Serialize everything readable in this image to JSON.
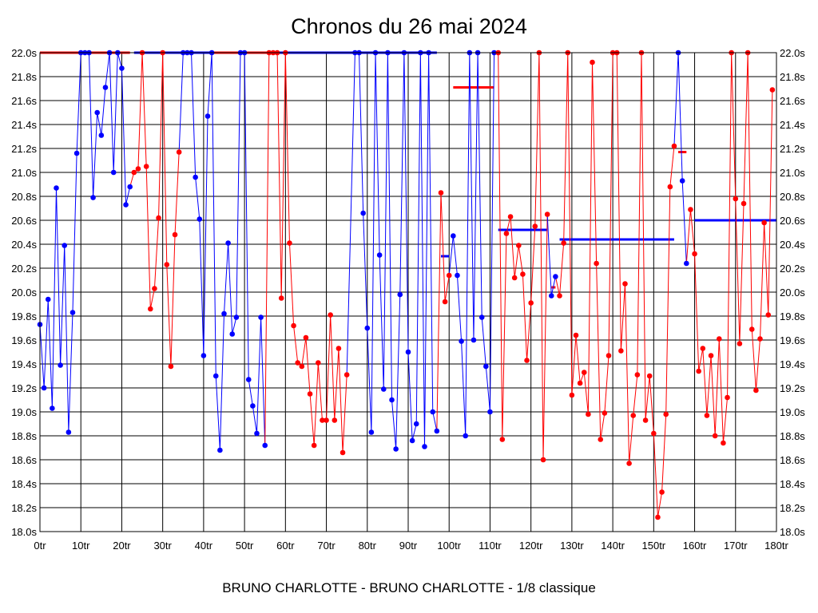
{
  "chart_data": {
    "type": "line",
    "title": "Chronos du 26 mai 2024",
    "footer": "BRUNO CHARLOTTE - BRUNO CHARLOTTE - 1/8 classique",
    "xlabel": "tr",
    "ylabel": "s",
    "xlim": [
      0,
      180
    ],
    "ylim": [
      18.0,
      22.0
    ],
    "x_ticks": [
      "0tr",
      "10tr",
      "20tr",
      "30tr",
      "40tr",
      "50tr",
      "60tr",
      "70tr",
      "80tr",
      "90tr",
      "100tr",
      "110tr",
      "120tr",
      "130tr",
      "140tr",
      "150tr",
      "160tr",
      "170tr",
      "180tr"
    ],
    "y_ticks": [
      "18.0s",
      "18.2s",
      "18.4s",
      "18.6s",
      "18.8s",
      "19.0s",
      "19.2s",
      "19.4s",
      "19.6s",
      "19.8s",
      "20.0s",
      "20.2s",
      "20.4s",
      "20.6s",
      "20.8s",
      "21.0s",
      "21.2s",
      "21.4s",
      "21.6s",
      "21.8s",
      "22.0s"
    ],
    "grid": true,
    "colors": {
      "blue": "#0000ff",
      "red": "#ff0000"
    },
    "segments": [
      {
        "color": "blue",
        "points": [
          [
            0,
            19.73
          ],
          [
            1,
            19.2
          ],
          [
            2,
            19.94
          ],
          [
            3,
            19.03
          ],
          [
            4,
            20.87
          ],
          [
            5,
            19.39
          ],
          [
            6,
            20.39
          ],
          [
            7,
            18.83
          ],
          [
            8,
            19.83
          ],
          [
            9,
            21.16
          ],
          [
            10,
            22
          ],
          [
            11,
            22
          ],
          [
            12,
            22
          ],
          [
            13,
            20.79
          ],
          [
            14,
            21.5
          ],
          [
            15,
            21.31
          ],
          [
            16,
            21.71
          ],
          [
            17,
            22
          ],
          [
            18,
            21.0
          ],
          [
            19,
            22
          ],
          [
            20,
            21.87
          ],
          [
            21,
            20.73
          ],
          [
            22,
            20.88
          ]
        ]
      },
      {
        "color": "red",
        "points": [
          [
            23,
            21.0
          ],
          [
            24,
            21.03
          ],
          [
            25,
            22
          ],
          [
            26,
            21.05
          ],
          [
            27,
            19.86
          ],
          [
            28,
            20.03
          ],
          [
            29,
            20.62
          ],
          [
            30,
            22
          ],
          [
            31,
            20.23
          ],
          [
            32,
            19.38
          ],
          [
            33,
            20.48
          ],
          [
            34,
            21.17
          ]
        ]
      },
      {
        "color": "blue",
        "points": [
          [
            35,
            22
          ],
          [
            36,
            22
          ],
          [
            37,
            22
          ],
          [
            38,
            20.96
          ],
          [
            39,
            20.61
          ],
          [
            40,
            19.47
          ],
          [
            41,
            21.47
          ],
          [
            42,
            22
          ],
          [
            43,
            19.3
          ],
          [
            44,
            18.68
          ],
          [
            45,
            19.82
          ],
          [
            46,
            20.41
          ],
          [
            47,
            19.65
          ],
          [
            48,
            19.79
          ],
          [
            49,
            22
          ],
          [
            50,
            22
          ],
          [
            51,
            19.27
          ],
          [
            52,
            19.05
          ],
          [
            53,
            18.82
          ],
          [
            54,
            19.79
          ],
          [
            55,
            18.72
          ]
        ]
      },
      {
        "color": "red",
        "points": [
          [
            56,
            22
          ],
          [
            57,
            22
          ],
          [
            58,
            22
          ],
          [
            59,
            19.95
          ],
          [
            60,
            22
          ],
          [
            61,
            20.41
          ],
          [
            62,
            19.72
          ],
          [
            63,
            19.41
          ],
          [
            64,
            19.38
          ],
          [
            65,
            19.62
          ],
          [
            66,
            19.15
          ],
          [
            67,
            18.72
          ],
          [
            68,
            19.41
          ],
          [
            69,
            18.93
          ],
          [
            70,
            18.93
          ],
          [
            71,
            19.81
          ],
          [
            72,
            18.93
          ],
          [
            73,
            19.53
          ],
          [
            74,
            18.66
          ],
          [
            75,
            19.31
          ]
        ]
      },
      {
        "color": "blue",
        "points": [
          [
            77,
            22
          ],
          [
            78,
            22
          ],
          [
            79,
            20.66
          ],
          [
            80,
            19.7
          ],
          [
            81,
            18.83
          ],
          [
            82,
            22
          ],
          [
            83,
            20.31
          ],
          [
            84,
            19.19
          ],
          [
            85,
            22
          ],
          [
            86,
            19.1
          ],
          [
            87,
            18.69
          ],
          [
            88,
            19.98
          ],
          [
            89,
            22
          ],
          [
            90,
            19.5
          ],
          [
            91,
            18.76
          ],
          [
            92,
            18.9
          ],
          [
            93,
            22
          ],
          [
            94,
            18.71
          ],
          [
            95,
            22
          ],
          [
            96,
            19.0
          ],
          [
            97,
            18.84
          ]
        ]
      },
      {
        "color": "red",
        "points": [
          [
            98,
            20.83
          ],
          [
            99,
            19.92
          ],
          [
            100,
            20.14
          ]
        ]
      },
      {
        "color": "blue",
        "points": [
          [
            101,
            20.47
          ],
          [
            102,
            20.14
          ],
          [
            103,
            19.59
          ],
          [
            104,
            18.8
          ],
          [
            105,
            22
          ],
          [
            106,
            19.6
          ],
          [
            107,
            22
          ],
          [
            108,
            19.79
          ],
          [
            109,
            19.38
          ],
          [
            110,
            19.0
          ],
          [
            111,
            22
          ]
        ]
      },
      {
        "color": "red",
        "points": [
          [
            112,
            22
          ],
          [
            113,
            18.77
          ],
          [
            114,
            20.49
          ],
          [
            115,
            20.63
          ],
          [
            116,
            20.12
          ],
          [
            117,
            20.39
          ],
          [
            118,
            20.15
          ],
          [
            119,
            19.43
          ],
          [
            120,
            19.91
          ],
          [
            121,
            20.55
          ],
          [
            122,
            22
          ],
          [
            123,
            18.6
          ],
          [
            124,
            20.65
          ]
        ]
      },
      {
        "color": "blue",
        "points": [
          [
            125,
            19.97
          ],
          [
            126,
            20.13
          ]
        ]
      },
      {
        "color": "red",
        "points": [
          [
            127,
            19.97
          ],
          [
            128,
            20.41
          ],
          [
            129,
            22
          ],
          [
            130,
            19.14
          ],
          [
            131,
            19.64
          ],
          [
            132,
            19.24
          ],
          [
            133,
            19.33
          ],
          [
            134,
            18.98
          ],
          [
            135,
            21.92
          ],
          [
            136,
            20.24
          ],
          [
            137,
            18.77
          ],
          [
            138,
            18.99
          ],
          [
            139,
            19.47
          ],
          [
            140,
            22
          ],
          [
            141,
            22
          ],
          [
            142,
            19.51
          ],
          [
            143,
            20.07
          ],
          [
            144,
            18.57
          ],
          [
            145,
            18.97
          ],
          [
            146,
            19.31
          ],
          [
            147,
            22
          ],
          [
            148,
            18.93
          ],
          [
            149,
            19.3
          ],
          [
            150,
            18.82
          ],
          [
            151,
            18.12
          ],
          [
            152,
            18.33
          ],
          [
            153,
            18.98
          ],
          [
            154,
            20.88
          ],
          [
            155,
            21.22
          ]
        ]
      },
      {
        "color": "blue",
        "points": [
          [
            156,
            22
          ],
          [
            157,
            20.93
          ],
          [
            158,
            20.24
          ]
        ]
      },
      {
        "color": "red",
        "points": [
          [
            159,
            20.69
          ],
          [
            160,
            20.32
          ],
          [
            161,
            19.34
          ],
          [
            162,
            19.53
          ],
          [
            163,
            18.97
          ],
          [
            164,
            19.47
          ],
          [
            165,
            18.8
          ],
          [
            166,
            19.61
          ],
          [
            167,
            18.74
          ],
          [
            168,
            19.12
          ],
          [
            169,
            22
          ],
          [
            170,
            20.78
          ],
          [
            171,
            19.57
          ],
          [
            172,
            20.74
          ],
          [
            173,
            22
          ],
          [
            174,
            19.69
          ],
          [
            175,
            19.18
          ],
          [
            176,
            19.61
          ],
          [
            177,
            20.58
          ],
          [
            178,
            19.81
          ],
          [
            179,
            21.69
          ]
        ]
      }
    ],
    "average_lines": [
      {
        "color": "red",
        "from": 0,
        "to": 22,
        "value": 22.0
      },
      {
        "color": "blue",
        "from": 23,
        "to": 41.5,
        "value": 22.0
      },
      {
        "color": "red",
        "from": 41.5,
        "to": 58.5,
        "value": 22.0
      },
      {
        "color": "blue",
        "from": 58.5,
        "to": 97,
        "value": 22.0
      },
      {
        "color": "blue",
        "from": 98,
        "to": 100,
        "value": 20.3
      },
      {
        "color": "red",
        "from": 101,
        "to": 111,
        "value": 21.71
      },
      {
        "color": "blue",
        "from": 112,
        "to": 124,
        "value": 20.52
      },
      {
        "color": "red",
        "from": 125,
        "to": 126,
        "value": 20.04
      },
      {
        "color": "blue",
        "from": 127,
        "to": 155,
        "value": 20.44
      },
      {
        "color": "red",
        "from": 156,
        "to": 158,
        "value": 21.17
      },
      {
        "color": "blue",
        "from": 160,
        "to": 180,
        "value": 20.6
      }
    ]
  }
}
